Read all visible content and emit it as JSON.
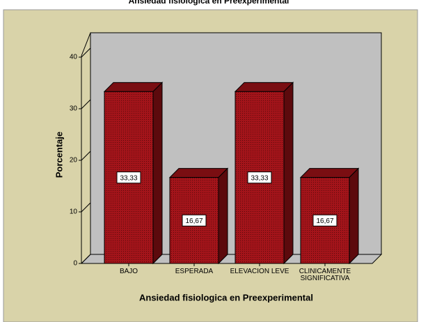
{
  "chart_data": {
    "type": "bar3d",
    "title": "Ansiedad fisiologica en Preexperimental",
    "x_label": "Ansiedad fisiologica en Preexperimental",
    "y_label": "Porcentaje",
    "categories": [
      "BAJO",
      "ESPERADA",
      "ELEVACION LEVE",
      "CLINICAMENTE SIGNIFICATIVA"
    ],
    "values": [
      33.33,
      16.67,
      33.33,
      16.67
    ],
    "value_labels": [
      "33,33",
      "16,67",
      "33,33",
      "16,67"
    ],
    "color": "#a3141a",
    "ylim": [
      0,
      40
    ],
    "yticks": [
      0,
      10,
      20,
      30,
      40
    ]
  }
}
